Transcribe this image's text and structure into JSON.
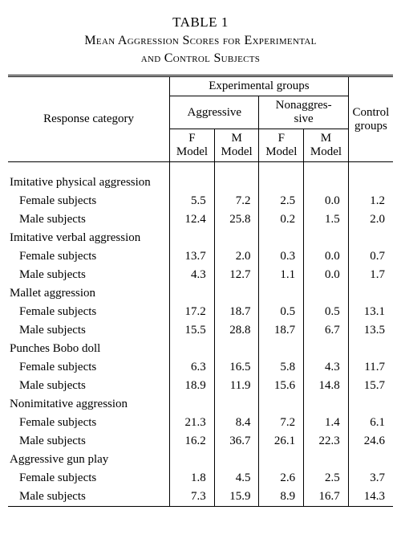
{
  "table_number": "TABLE 1",
  "title_line1": "Mean Aggression Scores for Experimental",
  "title_line2": "and Control Subjects",
  "headers": {
    "response_category": "Response category",
    "experimental_groups": "Experimental groups",
    "aggressive": "Aggressive",
    "nonaggressive": "Nonaggres-\nsive",
    "control_groups": "Control groups",
    "f_model": "F Model",
    "m_model": "M Model"
  },
  "categories": [
    {
      "label": "Imitative physical aggression",
      "rows": [
        {
          "label": "Female subjects",
          "v": [
            "5.5",
            "7.2",
            "2.5",
            "0.0",
            "1.2"
          ]
        },
        {
          "label": "Male subjects",
          "v": [
            "12.4",
            "25.8",
            "0.2",
            "1.5",
            "2.0"
          ]
        }
      ]
    },
    {
      "label": "Imitative verbal aggression",
      "rows": [
        {
          "label": "Female subjects",
          "v": [
            "13.7",
            "2.0",
            "0.3",
            "0.0",
            "0.7"
          ]
        },
        {
          "label": "Male subjects",
          "v": [
            "4.3",
            "12.7",
            "1.1",
            "0.0",
            "1.7"
          ]
        }
      ]
    },
    {
      "label": "Mallet aggression",
      "rows": [
        {
          "label": "Female subjects",
          "v": [
            "17.2",
            "18.7",
            "0.5",
            "0.5",
            "13.1"
          ]
        },
        {
          "label": "Male subjects",
          "v": [
            "15.5",
            "28.8",
            "18.7",
            "6.7",
            "13.5"
          ]
        }
      ]
    },
    {
      "label": "Punches Bobo doll",
      "rows": [
        {
          "label": "Female subjects",
          "v": [
            "6.3",
            "16.5",
            "5.8",
            "4.3",
            "11.7"
          ]
        },
        {
          "label": "Male subjects",
          "v": [
            "18.9",
            "11.9",
            "15.6",
            "14.8",
            "15.7"
          ]
        }
      ]
    },
    {
      "label": "Nonimitative aggression",
      "rows": [
        {
          "label": "Female subjects",
          "v": [
            "21.3",
            "8.4",
            "7.2",
            "1.4",
            "6.1"
          ]
        },
        {
          "label": "Male subjects",
          "v": [
            "16.2",
            "36.7",
            "26.1",
            "22.3",
            "24.6"
          ]
        }
      ]
    },
    {
      "label": "Aggressive gun play",
      "rows": [
        {
          "label": "Female subjects",
          "v": [
            "1.8",
            "4.5",
            "2.6",
            "2.5",
            "3.7"
          ]
        },
        {
          "label": "Male subjects",
          "v": [
            "7.3",
            "15.9",
            "8.9",
            "16.7",
            "14.3"
          ]
        }
      ]
    }
  ]
}
